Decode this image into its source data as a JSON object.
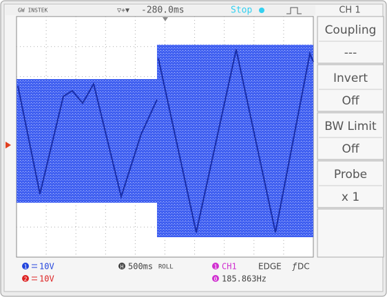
{
  "header": {
    "brand": "GW INSTEK",
    "position": "-280.0ms",
    "state": "Stop",
    "channel": "CH 1"
  },
  "menu": [
    {
      "label": "Coupling",
      "value": "---"
    },
    {
      "label": "Invert",
      "value": "Off"
    },
    {
      "label": "BW Limit",
      "value": "Off"
    },
    {
      "label": "Probe",
      "value": "x 1"
    }
  ],
  "footer": {
    "ch1": {
      "number": "1",
      "scale": "10V"
    },
    "ch2": {
      "number": "2",
      "scale": "10V"
    },
    "timebase": {
      "icon": "H",
      "value": "500ms",
      "mode": "ROLL"
    },
    "trigger": {
      "number": "1",
      "source": "CH1",
      "type": "EDGE",
      "coupling": "DC"
    },
    "frequency": {
      "number": "0",
      "value": "185.863Hz"
    }
  }
}
